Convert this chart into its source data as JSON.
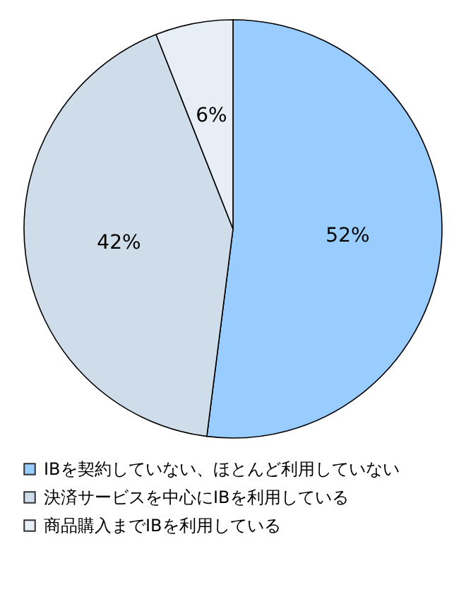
{
  "chart_data": {
    "type": "pie",
    "categories": [
      "IBを契約していない、ほとんど利用していない",
      "決済サービスを中心にIBを利用している",
      "商品購入までIBを利用している"
    ],
    "values": [
      52,
      42,
      6
    ],
    "colors": [
      "#99ccff",
      "#cfdcea",
      "#e8eef5"
    ],
    "value_labels": [
      "52%",
      "42%",
      "6%"
    ],
    "legend": "bottom"
  }
}
